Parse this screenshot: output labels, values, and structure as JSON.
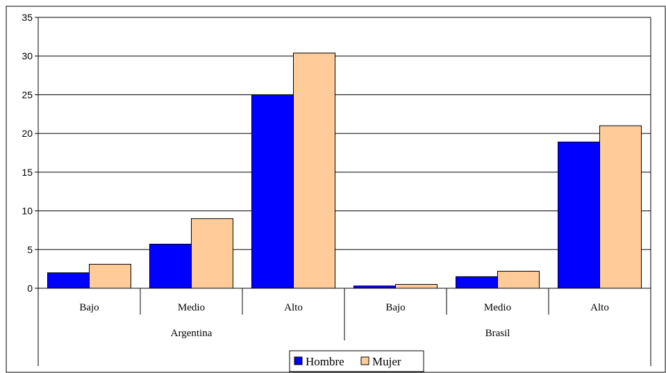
{
  "chart_data": {
    "type": "bar",
    "groups": [
      "Argentina",
      "Brasil"
    ],
    "categories": [
      "Bajo",
      "Medio",
      "Alto",
      "Bajo",
      "Medio",
      "Alto"
    ],
    "category_group": [
      0,
      0,
      0,
      1,
      1,
      1
    ],
    "series": [
      {
        "name": "Hombre",
        "color": "#0000ff",
        "values": [
          2.0,
          5.7,
          25.0,
          0.3,
          1.5,
          18.9
        ]
      },
      {
        "name": "Mujer",
        "color": "#ffcc99",
        "values": [
          3.1,
          9.0,
          30.4,
          0.5,
          2.2,
          21.0
        ]
      }
    ],
    "ylim": [
      0,
      35
    ],
    "yticks": [
      0,
      5,
      10,
      15,
      20,
      25,
      30,
      35
    ],
    "ytick_labels": [
      "0",
      "5",
      "10",
      "15",
      "20",
      "25",
      "30",
      "35"
    ],
    "grid": true,
    "legend_position": "bottom-center"
  }
}
